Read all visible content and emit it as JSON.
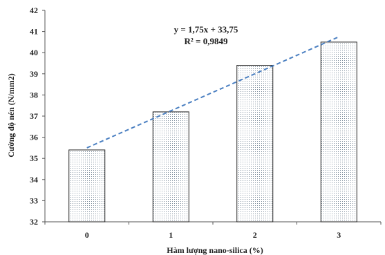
{
  "chart_data": {
    "type": "bar",
    "categories": [
      "0",
      "1",
      "2",
      "3"
    ],
    "values": [
      35.4,
      37.2,
      39.4,
      40.5
    ],
    "xlabel": "Hàm lượng nano-silica (%)",
    "ylabel": "Cường độ nén (N/mm2)",
    "ylim": [
      32,
      42
    ],
    "yticks": [
      "32",
      "33",
      "34",
      "35",
      "36",
      "37",
      "38",
      "39",
      "40",
      "41",
      "42"
    ],
    "grid": false,
    "bar_fill": "dotted-pattern",
    "trendline": {
      "type": "linear",
      "equation": "y = 1,75x + 33,75",
      "r_squared": "R² = 0,9849",
      "slope": 1.75,
      "intercept": 33.75,
      "color": "#4a7fc1",
      "style": "dashed"
    }
  }
}
